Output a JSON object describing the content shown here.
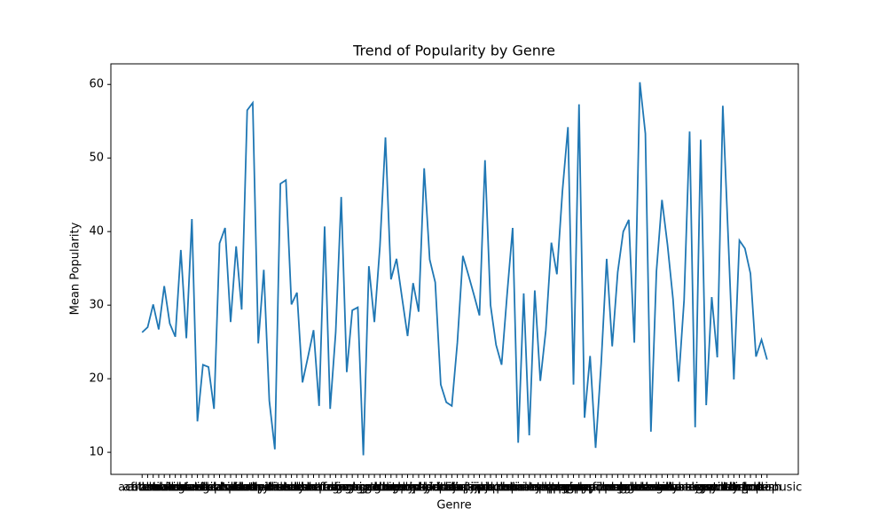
{
  "chart_data": {
    "type": "line",
    "title": "Trend of Popularity by Genre",
    "x_label": "Genre",
    "y_label": "Mean Popularity",
    "categories": [
      "acoustic",
      "afrobeat",
      "alt-rock",
      "alternative",
      "ambient",
      "anime",
      "black-metal",
      "bluegrass",
      "blues",
      "brazil",
      "breakbeat",
      "british",
      "cantopop",
      "chicago-house",
      "children",
      "chill",
      "classical",
      "club",
      "comedy",
      "country",
      "dance",
      "dancehall",
      "death-metal",
      "deep-house",
      "detroit-techno",
      "disco",
      "disney",
      "drum-and-bass",
      "dub",
      "dubstep",
      "edm",
      "electro",
      "electronic",
      "emo",
      "folk",
      "forro",
      "french",
      "funk",
      "garage",
      "german",
      "gospel",
      "goth",
      "grindcore",
      "groove",
      "grunge",
      "guitar",
      "happy",
      "hard-rock",
      "hardcore",
      "hardstyle",
      "heavy-metal",
      "hip-hop",
      "honky-tonk",
      "house",
      "idm",
      "indian",
      "indie",
      "indie-pop",
      "industrial",
      "iranian",
      "j-dance",
      "j-idol",
      "j-pop",
      "j-rock",
      "jazz",
      "k-pop",
      "kids",
      "latin",
      "latino",
      "malay",
      "mandopop",
      "metal",
      "metalcore",
      "minimal-techno",
      "mpb",
      "new-age",
      "opera",
      "pagode",
      "party",
      "piano",
      "pop",
      "pop-film",
      "power-pop",
      "progressive-house",
      "psych-rock",
      "punk",
      "punk-rock",
      "r-n-b",
      "reggae",
      "reggaeton",
      "rock",
      "rock-n-roll",
      "rockabilly",
      "romance",
      "sad",
      "salsa",
      "samba",
      "sertanejo",
      "show-tunes",
      "singer-songwriter",
      "ska",
      "sleep",
      "songwriter",
      "soul",
      "spanish",
      "study",
      "swedish",
      "synth-pop",
      "tango",
      "techno",
      "trance",
      "trip-hop",
      "turkish",
      "world-music"
    ],
    "series": [
      {
        "name": "Mean Popularity",
        "color": "#1f77b4",
        "values": [
          26.3,
          27,
          30.1,
          26.7,
          32.6,
          27.5,
          25.7,
          37.5,
          25.5,
          41.7,
          14.2,
          21.9,
          21.6,
          15.9,
          38.4,
          40.5,
          27.7,
          38.0,
          29.4,
          56.5,
          57.5,
          24.8,
          34.8,
          17,
          10.4,
          46.5,
          47,
          30.1,
          31.7,
          19.5,
          23,
          26.6,
          16.3,
          40.7,
          15.9,
          26.3,
          44.7,
          20.9,
          29.3,
          29.7,
          9.6,
          35.3,
          27.7,
          38,
          52.8,
          33.5,
          36.3,
          31,
          25.8,
          33,
          29.1,
          48.6,
          36.2,
          33.1,
          19.2,
          16.8,
          16.3,
          24.9,
          36.7,
          34.1,
          31.4,
          28.6,
          49.7,
          30,
          24.6,
          21.9,
          31.5,
          40.5,
          11.3,
          31.6,
          12.3,
          32,
          19.7,
          26.6,
          38.5,
          34.2,
          45.5,
          54.2,
          19.2,
          57.3,
          14.7,
          23.1,
          10.6,
          22,
          36.3,
          24.4,
          34.5,
          40,
          41.6,
          24.9,
          60.3,
          53.3,
          12.8,
          34.6,
          44.3,
          38.2,
          30.8,
          19.6,
          30.7,
          53.6,
          13.4,
          52.5,
          16.4,
          31.1,
          22.9,
          57.1,
          38.7,
          19.9,
          38.8,
          37.7,
          34.3,
          23,
          25.3,
          22.6
        ]
      }
    ],
    "ylim": [
      7.0,
      62.8
    ],
    "yticks": [
      10,
      20,
      30,
      40,
      50,
      60
    ]
  }
}
